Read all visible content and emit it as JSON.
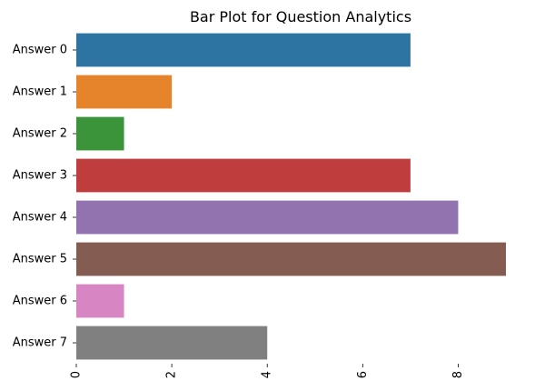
{
  "chart_data": {
    "type": "bar",
    "orientation": "horizontal",
    "title": "Bar Plot for Question Analytics",
    "xlabel": "",
    "ylabel": "",
    "categories": [
      "Answer 0",
      "Answer 1",
      "Answer 2",
      "Answer 3",
      "Answer 4",
      "Answer 5",
      "Answer 6",
      "Answer 7"
    ],
    "values": [
      7,
      2,
      1,
      7,
      8,
      9,
      1,
      4
    ],
    "colors": [
      "#2e74a3",
      "#e6842c",
      "#3b9439",
      "#c03d3e",
      "#9273b0",
      "#845c52",
      "#d886c3",
      "#808080"
    ],
    "xlim": [
      0,
      9
    ],
    "xticks": [
      0,
      2,
      4,
      6,
      8
    ],
    "x_tick_label_rotation": "vertical",
    "grid": false,
    "legend": "none",
    "spines": "hidden"
  }
}
